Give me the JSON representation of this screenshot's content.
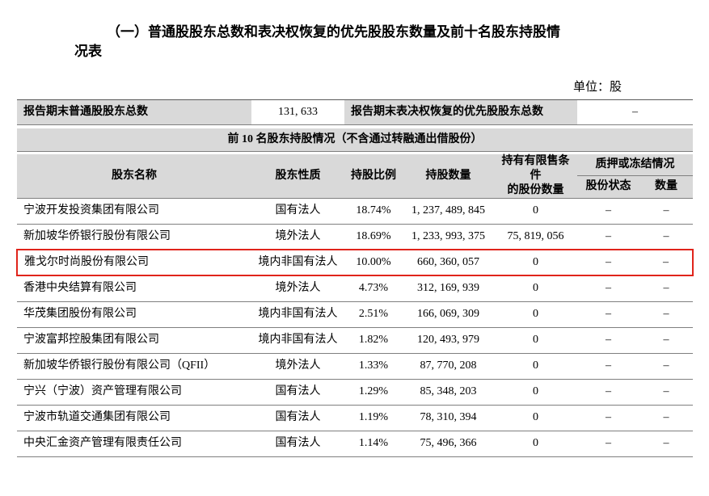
{
  "page": {
    "title_line1": "（一）普通股股东总数和表决权恢复的优先股股东数量及前十名股东持股情",
    "title_line2": "况表",
    "unit_label": "单位：股"
  },
  "colors": {
    "header_bg": "#d9d9d9",
    "row_line": "#7f7f7f",
    "highlight_border": "#e0241b"
  },
  "summary": {
    "common_holders_label": "报告期末普通股股东总数",
    "common_holders_value": "131, 633",
    "preferred_holders_label": "报告期末表决权恢复的优先股股东总数",
    "preferred_holders_value": "–"
  },
  "top10": {
    "section_header": "前 10 名股东持股情况（不含通过转融通出借股份）",
    "columns": {
      "name": "股东名称",
      "nature": "股东性质",
      "ratio": "持股比例",
      "shares": "持股数量",
      "restricted_line1": "持有有限售条件",
      "restricted_line2": "的股份数量",
      "pledge_group": "质押或冻结情况",
      "pledge_status": "股份状态",
      "pledge_qty": "数量"
    },
    "rows": [
      {
        "name": "宁波开发投资集团有限公司",
        "nature": "国有法人",
        "ratio": "18.74%",
        "shares": "1, 237, 489, 845",
        "restricted": "0",
        "status": "–",
        "qty": "–",
        "highlight": false
      },
      {
        "name": "新加坡华侨银行股份有限公司",
        "nature": "境外法人",
        "ratio": "18.69%",
        "shares": "1, 233, 993, 375",
        "restricted": "75, 819, 056",
        "status": "–",
        "qty": "–",
        "highlight": false
      },
      {
        "name": "雅戈尔时尚股份有限公司",
        "nature": "境内非国有法人",
        "ratio": "10.00%",
        "shares": "660, 360, 057",
        "restricted": "0",
        "status": "–",
        "qty": "–",
        "highlight": true
      },
      {
        "name": "香港中央结算有限公司",
        "nature": "境外法人",
        "ratio": "4.73%",
        "shares": "312, 169, 939",
        "restricted": "0",
        "status": "–",
        "qty": "–",
        "highlight": false
      },
      {
        "name": "华茂集团股份有限公司",
        "nature": "境内非国有法人",
        "ratio": "2.51%",
        "shares": "166, 069, 309",
        "restricted": "0",
        "status": "–",
        "qty": "–",
        "highlight": false
      },
      {
        "name": "宁波富邦控股集团有限公司",
        "nature": "境内非国有法人",
        "ratio": "1.82%",
        "shares": "120, 493, 979",
        "restricted": "0",
        "status": "–",
        "qty": "–",
        "highlight": false
      },
      {
        "name": "新加坡华侨银行股份有限公司（QFII）",
        "nature": "境外法人",
        "ratio": "1.33%",
        "shares": "87, 770, 208",
        "restricted": "0",
        "status": "–",
        "qty": "–",
        "highlight": false
      },
      {
        "name": "宁兴（宁波）资产管理有限公司",
        "nature": "国有法人",
        "ratio": "1.29%",
        "shares": "85, 348, 203",
        "restricted": "0",
        "status": "–",
        "qty": "–",
        "highlight": false
      },
      {
        "name": "宁波市轨道交通集团有限公司",
        "nature": "国有法人",
        "ratio": "1.19%",
        "shares": "78, 310, 394",
        "restricted": "0",
        "status": "–",
        "qty": "–",
        "highlight": false
      },
      {
        "name": "中央汇金资产管理有限责任公司",
        "nature": "国有法人",
        "ratio": "1.14%",
        "shares": "75, 496, 366",
        "restricted": "0",
        "status": "–",
        "qty": "–",
        "highlight": false
      }
    ]
  }
}
